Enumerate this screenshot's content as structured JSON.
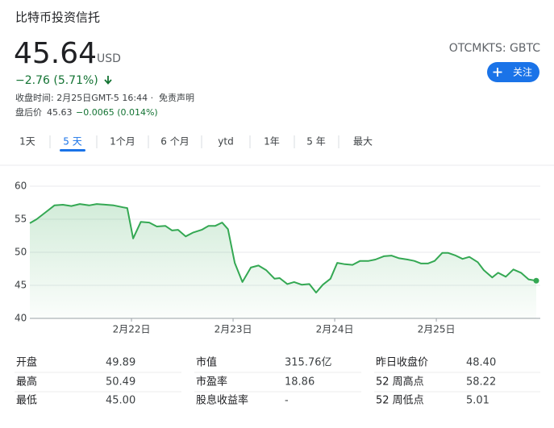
{
  "header": {
    "title": "比特币投资信托",
    "price": "45.64",
    "currency": "USD",
    "exchange": "OTCMKTS: GBTC",
    "follow": "关注",
    "change": "−2.76 (5.71%)",
    "close_time": "收盘时间: 2月25日GMT-5 16:44 ·",
    "disclaimer": "免责声明",
    "after_label": "盘后价",
    "after_price": "45.63",
    "after_change": "−0.0065 (0.014%)"
  },
  "tabs": [
    "1天",
    "5 天",
    "1个月",
    "6 个月",
    "ytd",
    "1年",
    "5 年",
    "最大"
  ],
  "selected_tab": 1,
  "chart_data": {
    "type": "line",
    "color": "#34a853",
    "grid": true,
    "x": [
      0,
      0.8,
      1.9,
      2.9,
      3.9,
      4.9,
      5.9,
      7.0,
      7.9,
      9.0,
      9.9,
      11.0,
      11.5,
      12.2,
      13.1,
      14.1,
      15.0,
      16.0,
      16.8,
      17.5,
      18.4,
      19.3,
      20.3,
      21.1,
      21.9,
      22.7,
      23.4,
      24.2,
      25.1,
      26.1,
      27.0,
      27.9,
      28.9,
      29.5,
      30.4,
      31.2,
      32.1,
      33.0,
      33.8,
      34.6,
      35.5,
      36.3,
      37.2,
      38.1,
      39.0,
      40.0,
      40.8,
      41.8,
      42.7,
      43.6,
      44.6,
      45.4,
      46.2,
      47.0,
      47.8,
      48.7,
      49.4,
      50.3,
      51.1,
      51.9,
      52.9,
      53.6,
      54.6,
      55.3,
      56.2,
      57.1,
      58.0,
      58.9,
      59.8
    ],
    "values": [
      54.4,
      55.0,
      56.1,
      57.1,
      57.2,
      57.0,
      57.3,
      57.1,
      57.3,
      57.2,
      57.1,
      56.8,
      56.7,
      52.1,
      54.6,
      54.5,
      53.9,
      54.0,
      53.3,
      53.4,
      52.4,
      53.0,
      53.4,
      54.0,
      54.0,
      54.5,
      53.5,
      48.4,
      45.5,
      47.7,
      48.0,
      47.3,
      46.0,
      46.1,
      45.2,
      45.5,
      45.1,
      45.2,
      43.9,
      45.1,
      46.0,
      48.4,
      48.2,
      48.1,
      48.7,
      48.7,
      48.9,
      49.4,
      49.5,
      49.1,
      48.9,
      48.7,
      48.3,
      48.3,
      48.7,
      49.9,
      49.9,
      49.5,
      49.0,
      49.3,
      48.5,
      47.3,
      46.2,
      46.9,
      46.3,
      47.4,
      46.9,
      45.9,
      45.7
    ],
    "xlim": [
      0,
      59.8
    ],
    "xticks": [
      {
        "value": 12,
        "label": "2月22日"
      },
      {
        "value": 24,
        "label": "2月23日"
      },
      {
        "value": 36,
        "label": "2月24日"
      },
      {
        "value": 48,
        "label": "2月25日"
      }
    ],
    "ylim": [
      40,
      60
    ],
    "yticks": [
      40,
      45,
      50,
      55,
      60
    ]
  },
  "stats": [
    [
      "开盘",
      "49.89",
      "市值",
      "315.76亿",
      "昨日收盘价",
      "48.40"
    ],
    [
      "最高",
      "50.49",
      "市盈率",
      "18.86",
      "52 周高点",
      "58.22"
    ],
    [
      "最低",
      "45.00",
      "股息收益率",
      "-",
      "52 周低点",
      "5.01"
    ]
  ]
}
